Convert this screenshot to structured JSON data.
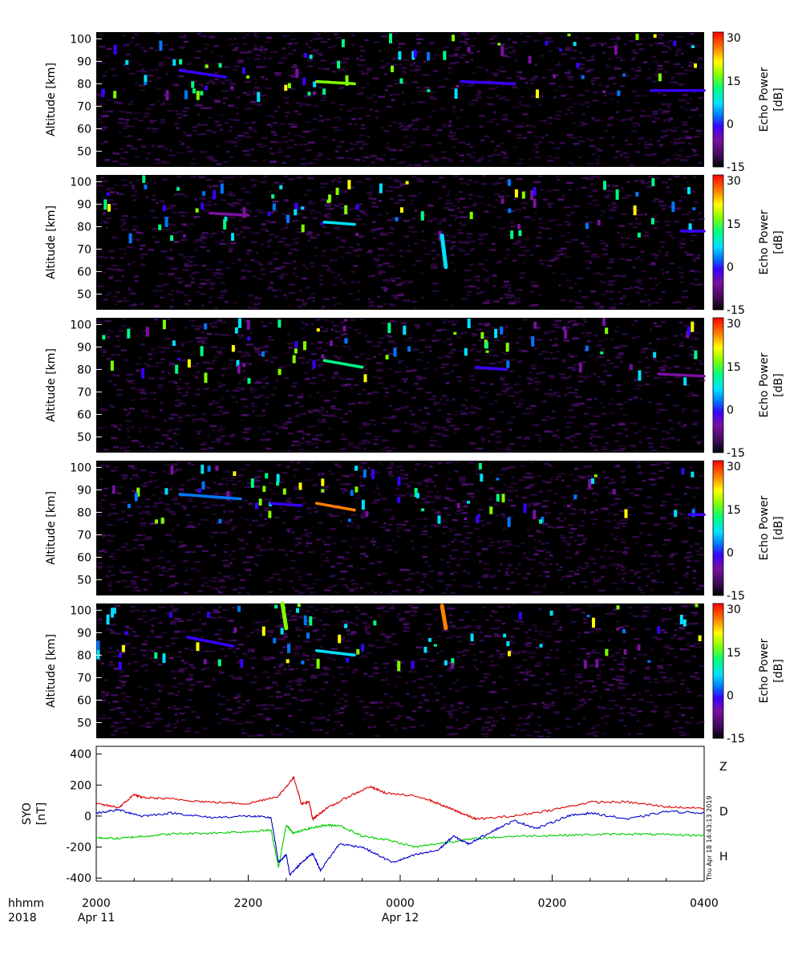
{
  "colors": {
    "background": "#000000",
    "colormap": [
      "#000000",
      "#3a0a52",
      "#7a10a0",
      "#3a00ff",
      "#0077ff",
      "#00e0ff",
      "#00ff80",
      "#80ff00",
      "#ffff00",
      "#ff8000",
      "#ff0000"
    ],
    "Z": "#dd0000",
    "D": "#00cc00",
    "H": "#0000cc"
  },
  "chart_data": [
    {
      "type": "heatmap",
      "panel": 1,
      "ylabel": "Altitude [km]",
      "yticks": [
        50,
        60,
        70,
        80,
        90,
        100
      ],
      "ylim": [
        43,
        103
      ],
      "xlim": [
        "2018-04-11 20:00",
        "2018-04-12 04:00"
      ],
      "colorbar": {
        "label": "Echo Power [dB]",
        "ticks": [
          -15,
          0,
          15,
          30
        ],
        "range": [
          -15,
          32
        ]
      },
      "features": [
        {
          "time_h": [
            21.1,
            21.7
          ],
          "alt_km": [
            86,
            83
          ],
          "power_db": 0
        },
        {
          "time_h": [
            22.9,
            23.4
          ],
          "alt_km": [
            81,
            80
          ],
          "power_db": 20
        },
        {
          "time_h": [
            24.8,
            25.5
          ],
          "alt_km": [
            81,
            80
          ],
          "power_db": -3
        },
        {
          "time_h": [
            27.3,
            28.0
          ],
          "alt_km": [
            77,
            77
          ],
          "power_db": 0
        }
      ]
    },
    {
      "type": "heatmap",
      "panel": 2,
      "ylabel": "Altitude [km]",
      "yticks": [
        50,
        60,
        70,
        80,
        90,
        100
      ],
      "ylim": [
        43,
        103
      ],
      "xlim": [
        "2018-04-11 20:00",
        "2018-04-12 04:00"
      ],
      "colorbar": {
        "label": "Echo Power [dB]",
        "ticks": [
          -15,
          0,
          15,
          30
        ],
        "range": [
          -15,
          32
        ]
      },
      "features": [
        {
          "time_h": [
            21.5,
            22.0
          ],
          "alt_km": [
            86,
            85
          ],
          "power_db": -7
        },
        {
          "time_h": [
            23.0,
            23.4
          ],
          "alt_km": [
            82,
            81
          ],
          "power_db": 10
        },
        {
          "time_h": [
            24.55,
            24.6
          ],
          "alt_km": [
            76,
            62
          ],
          "power_db": 10
        },
        {
          "time_h": [
            27.7,
            28.0
          ],
          "alt_km": [
            78,
            78
          ],
          "power_db": 0
        }
      ]
    },
    {
      "type": "heatmap",
      "panel": 3,
      "ylabel": "Altitude [km]",
      "yticks": [
        50,
        60,
        70,
        80,
        90,
        100
      ],
      "ylim": [
        43,
        103
      ],
      "xlim": [
        "2018-04-11 20:00",
        "2018-04-12 04:00"
      ],
      "colorbar": {
        "label": "Echo Power [dB]",
        "ticks": [
          -15,
          0,
          15,
          30
        ],
        "range": [
          -15,
          32
        ]
      },
      "features": [
        {
          "time_h": [
            23.0,
            23.5
          ],
          "alt_km": [
            84,
            81
          ],
          "power_db": 15
        },
        {
          "time_h": [
            25.0,
            25.4
          ],
          "alt_km": [
            81,
            80
          ],
          "power_db": 0
        },
        {
          "time_h": [
            27.4,
            28.0
          ],
          "alt_km": [
            78,
            77
          ],
          "power_db": -7
        }
      ]
    },
    {
      "type": "heatmap",
      "panel": 4,
      "ylabel": "Altitude [km]",
      "yticks": [
        50,
        60,
        70,
        80,
        90,
        100
      ],
      "ylim": [
        43,
        103
      ],
      "xlim": [
        "2018-04-11 20:00",
        "2018-04-12 04:00"
      ],
      "colorbar": {
        "label": "Echo Power [dB]",
        "ticks": [
          -15,
          0,
          15,
          30
        ],
        "range": [
          -15,
          32
        ]
      },
      "features": [
        {
          "time_h": [
            21.1,
            21.9
          ],
          "alt_km": [
            88,
            86
          ],
          "power_db": 5
        },
        {
          "time_h": [
            22.3,
            22.7
          ],
          "alt_km": [
            84,
            83
          ],
          "power_db": 0
        },
        {
          "time_h": [
            22.9,
            23.4
          ],
          "alt_km": [
            84,
            81
          ],
          "power_db": 25
        },
        {
          "time_h": [
            27.8,
            28.0
          ],
          "alt_km": [
            79,
            79
          ],
          "power_db": 0
        }
      ]
    },
    {
      "type": "heatmap",
      "panel": 5,
      "ylabel": "Altitude [km]",
      "yticks": [
        50,
        60,
        70,
        80,
        90,
        100
      ],
      "ylim": [
        43,
        103
      ],
      "xlim": [
        "2018-04-11 20:00",
        "2018-04-12 04:00"
      ],
      "colorbar": {
        "label": "Echo Power [dB]",
        "ticks": [
          -15,
          0,
          15,
          30
        ],
        "range": [
          -15,
          32
        ]
      },
      "features": [
        {
          "time_h": [
            21.2,
            21.8
          ],
          "alt_km": [
            88,
            84
          ],
          "power_db": 0
        },
        {
          "time_h": [
            22.9,
            23.4
          ],
          "alt_km": [
            82,
            80
          ],
          "power_db": 10
        },
        {
          "time_h": [
            24.55,
            24.6
          ],
          "alt_km": [
            102,
            92
          ],
          "power_db": 28
        },
        {
          "time_h": [
            22.45,
            22.5
          ],
          "alt_km": [
            103,
            92
          ],
          "power_db": 20
        }
      ]
    },
    {
      "type": "line",
      "panel": 6,
      "ylabel": "SYO [nT]",
      "ylim": [
        -420,
        450
      ],
      "yticks": [
        -400,
        -200,
        0,
        200,
        400
      ],
      "xlim": [
        20,
        28
      ],
      "series": [
        {
          "name": "Z",
          "x": [
            20.0,
            20.3,
            20.5,
            20.6,
            21.0,
            21.5,
            22.0,
            22.4,
            22.6,
            22.7,
            22.8,
            22.85,
            23.0,
            23.3,
            23.6,
            23.8,
            24.3,
            24.6,
            24.8,
            25.0,
            25.5,
            26.0,
            26.5,
            27.0,
            27.5,
            28.0
          ],
          "values": [
            80,
            55,
            140,
            120,
            110,
            90,
            80,
            130,
            250,
            80,
            90,
            -20,
            40,
            120,
            190,
            150,
            120,
            60,
            20,
            -20,
            0,
            40,
            90,
            90,
            60,
            50
          ]
        },
        {
          "name": "D",
          "x": [
            20.0,
            20.3,
            20.6,
            21.0,
            21.5,
            22.0,
            22.3,
            22.4,
            22.5,
            22.6,
            22.8,
            23.0,
            23.2,
            23.5,
            23.8,
            24.2,
            24.6,
            25.0,
            25.5,
            26.0,
            26.5,
            27.0,
            27.5,
            28.0
          ],
          "values": [
            -140,
            -145,
            -130,
            -115,
            -110,
            -100,
            -90,
            -330,
            -60,
            -110,
            -80,
            -60,
            -60,
            -130,
            -150,
            -200,
            -170,
            -145,
            -130,
            -125,
            -120,
            -115,
            -120,
            -125
          ]
        },
        {
          "name": "H",
          "x": [
            20.0,
            20.3,
            20.6,
            21.0,
            21.5,
            22.0,
            22.3,
            22.4,
            22.5,
            22.55,
            22.7,
            22.85,
            22.95,
            23.2,
            23.5,
            23.9,
            24.2,
            24.5,
            24.7,
            24.9,
            25.2,
            25.5,
            25.8,
            26.2,
            26.5,
            27.0,
            27.5,
            28.0
          ],
          "values": [
            20,
            40,
            0,
            20,
            -10,
            0,
            -10,
            -300,
            -250,
            -380,
            -300,
            -240,
            -350,
            -180,
            -200,
            -300,
            -250,
            -220,
            -130,
            -180,
            -100,
            -30,
            -80,
            0,
            20,
            -20,
            30,
            20
          ]
        }
      ],
      "side_labels": [
        "Z",
        "D",
        "H"
      ],
      "stamp": "Thu Apr 18 14:43:13 2019"
    }
  ],
  "xaxis": {
    "row1_label": "hhmm",
    "row2_label": "2018",
    "ticks": [
      {
        "x_h": 20,
        "time": "2000",
        "date": "Apr 11"
      },
      {
        "x_h": 22,
        "time": "2200",
        "date": ""
      },
      {
        "x_h": 24,
        "time": "0000",
        "date": "Apr 12"
      },
      {
        "x_h": 26,
        "time": "0200",
        "date": ""
      },
      {
        "x_h": 28,
        "time": "0400",
        "date": ""
      }
    ]
  }
}
